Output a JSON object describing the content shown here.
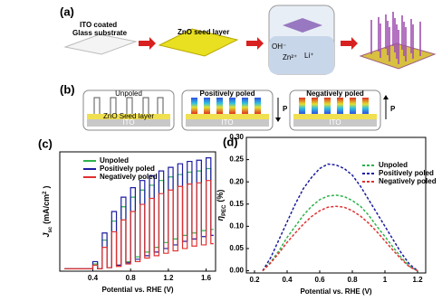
{
  "figure": {
    "a": {
      "label": "(a)",
      "substrate": [
        "ITO coated",
        "Glass substrate"
      ],
      "seed": "ZnO seed layer",
      "ions": [
        "OH⁻",
        "Zn²⁺",
        "Li⁺"
      ]
    },
    "b": {
      "label": "(b)",
      "panels": [
        {
          "title": "Unpoled",
          "layer": "ZnO Seed layer",
          "base": "ITO"
        },
        {
          "title": "Positively poled",
          "base": "ITO",
          "arrow": "P"
        },
        {
          "title": "Negatively poled",
          "base": "ITO",
          "arrow": "P"
        }
      ]
    }
  },
  "chart_data": [
    {
      "type": "step",
      "label": "(c)",
      "xlabel": "Potential vs. RHE (V)",
      "ylabel": [
        "J",
        "sc",
        "(mA/cm",
        "2",
        ")"
      ],
      "xlim": [
        0.05,
        1.7
      ],
      "ylim": [
        0,
        1
      ],
      "xticks": [
        0.4,
        0.8,
        1.2,
        1.6
      ],
      "x": [
        0.1,
        0.15,
        0.2,
        0.25,
        0.3,
        0.35,
        0.4,
        0.45,
        0.5,
        0.55,
        0.6,
        0.65,
        0.7,
        0.75,
        0.8,
        0.85,
        0.9,
        0.95,
        1.0,
        1.05,
        1.1,
        1.15,
        1.2,
        1.25,
        1.3,
        1.35,
        1.4,
        1.45,
        1.5,
        1.55,
        1.6,
        1.65
      ],
      "series": [
        {
          "name": "Unpoled",
          "color": "#2db34a",
          "values": [
            0.02,
            0.02,
            0.02,
            0.02,
            0.02,
            0.02,
            0.06,
            0.02,
            0.26,
            0.03,
            0.42,
            0.05,
            0.54,
            0.08,
            0.62,
            0.12,
            0.68,
            0.16,
            0.72,
            0.2,
            0.76,
            0.24,
            0.79,
            0.27,
            0.81,
            0.3,
            0.83,
            0.32,
            0.84,
            0.34,
            0.86,
            0.35
          ]
        },
        {
          "name": "Positively  poled",
          "color": "#1c1ca0",
          "values": [
            0.02,
            0.02,
            0.02,
            0.02,
            0.02,
            0.02,
            0.08,
            0.02,
            0.32,
            0.03,
            0.5,
            0.05,
            0.62,
            0.07,
            0.7,
            0.1,
            0.76,
            0.13,
            0.8,
            0.16,
            0.84,
            0.19,
            0.87,
            0.22,
            0.9,
            0.25,
            0.92,
            0.27,
            0.93,
            0.29,
            0.95,
            0.3
          ]
        },
        {
          "name": "Negatively poled",
          "color": "#e03030",
          "values": [
            0.02,
            0.02,
            0.02,
            0.02,
            0.02,
            0.02,
            0.05,
            0.02,
            0.2,
            0.03,
            0.33,
            0.04,
            0.43,
            0.06,
            0.5,
            0.08,
            0.56,
            0.11,
            0.61,
            0.13,
            0.65,
            0.15,
            0.68,
            0.17,
            0.71,
            0.19,
            0.73,
            0.21,
            0.74,
            0.22,
            0.76,
            0.23
          ]
        }
      ]
    },
    {
      "type": "line",
      "label": "(d)",
      "xlabel": "Potential vs. RHE (V)",
      "ylabel": [
        "η",
        "PEC",
        "(%)"
      ],
      "xlim": [
        0.15,
        1.25
      ],
      "ylim": [
        -0.005,
        0.3
      ],
      "xticks": [
        0.2,
        0.4,
        0.6,
        0.8,
        1.0,
        1.2
      ],
      "yticks": [
        {
          "value": 0,
          "label": "0.00"
        },
        0.05,
        {
          "value": 0.1,
          "label": "0.10"
        },
        0.15,
        {
          "value": 0.2,
          "label": "0.20"
        },
        0.25,
        {
          "value": 0.3,
          "label": "0.30"
        }
      ],
      "x": [
        0.25,
        0.3,
        0.35,
        0.4,
        0.45,
        0.5,
        0.55,
        0.6,
        0.65,
        0.7,
        0.75,
        0.8,
        0.85,
        0.9,
        0.95,
        1.0,
        1.05,
        1.1,
        1.15,
        1.2
      ],
      "series": [
        {
          "name": "Unpoled",
          "color": "#2db34a",
          "values": [
            0,
            0.02,
            0.045,
            0.075,
            0.1,
            0.125,
            0.145,
            0.16,
            0.168,
            0.17,
            0.167,
            0.158,
            0.145,
            0.125,
            0.1,
            0.077,
            0.053,
            0.03,
            0.01,
            0
          ]
        },
        {
          "name": "Positively poled",
          "color": "#1c1ca0",
          "values": [
            0,
            0.03,
            0.07,
            0.11,
            0.15,
            0.185,
            0.21,
            0.23,
            0.24,
            0.238,
            0.23,
            0.215,
            0.19,
            0.16,
            0.13,
            0.1,
            0.07,
            0.04,
            0.015,
            0
          ]
        },
        {
          "name": "Negatively poled",
          "color": "#e03030",
          "values": [
            0,
            0.018,
            0.04,
            0.064,
            0.085,
            0.105,
            0.122,
            0.135,
            0.143,
            0.145,
            0.143,
            0.135,
            0.123,
            0.107,
            0.088,
            0.067,
            0.046,
            0.026,
            0.009,
            0
          ]
        }
      ]
    }
  ]
}
